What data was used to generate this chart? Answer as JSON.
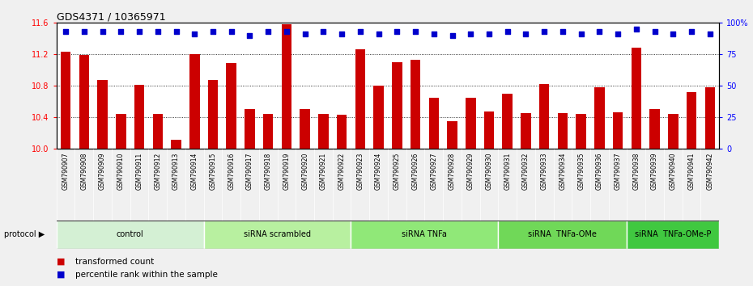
{
  "title": "GDS4371 / 10365971",
  "samples": [
    "GSM790907",
    "GSM790908",
    "GSM790909",
    "GSM790910",
    "GSM790911",
    "GSM790912",
    "GSM790913",
    "GSM790914",
    "GSM790915",
    "GSM790916",
    "GSM790917",
    "GSM790918",
    "GSM790919",
    "GSM790920",
    "GSM790921",
    "GSM790922",
    "GSM790923",
    "GSM790924",
    "GSM790925",
    "GSM790926",
    "GSM790927",
    "GSM790928",
    "GSM790929",
    "GSM790930",
    "GSM790931",
    "GSM790932",
    "GSM790933",
    "GSM790934",
    "GSM790935",
    "GSM790936",
    "GSM790937",
    "GSM790938",
    "GSM790939",
    "GSM790940",
    "GSM790941",
    "GSM790942"
  ],
  "bar_values": [
    11.23,
    11.19,
    10.87,
    10.44,
    10.81,
    10.44,
    10.11,
    11.2,
    10.87,
    11.09,
    10.5,
    10.44,
    11.58,
    10.5,
    10.44,
    10.43,
    11.26,
    10.8,
    11.1,
    11.13,
    10.65,
    10.35,
    10.65,
    10.47,
    10.7,
    10.45,
    10.82,
    10.45,
    10.44,
    10.78,
    10.46,
    11.28,
    10.5,
    10.44,
    10.72,
    10.78
  ],
  "percentile_values": [
    93,
    93,
    93,
    93,
    93,
    93,
    93,
    91,
    93,
    93,
    90,
    93,
    93,
    91,
    93,
    91,
    93,
    91,
    93,
    93,
    91,
    90,
    91,
    91,
    93,
    91,
    93,
    93,
    91,
    93,
    91,
    95,
    93,
    91,
    93,
    91
  ],
  "groups": [
    {
      "label": "control",
      "start": 0,
      "end": 7,
      "color": "#d4f0d4"
    },
    {
      "label": "siRNA scrambled",
      "start": 8,
      "end": 15,
      "color": "#b8f0a0"
    },
    {
      "label": "siRNA TNFa",
      "start": 16,
      "end": 23,
      "color": "#90e878"
    },
    {
      "label": "siRNA  TNFa-OMe",
      "start": 24,
      "end": 30,
      "color": "#70d858"
    },
    {
      "label": "siRNA  TNFa-OMe-P",
      "start": 31,
      "end": 35,
      "color": "#40c840"
    }
  ],
  "bar_color": "#cc0000",
  "dot_color": "#0000cc",
  "ylim_left": [
    10.0,
    11.6
  ],
  "ylim_right": [
    0,
    100
  ],
  "yticks_left": [
    10.0,
    10.4,
    10.8,
    11.2,
    11.6
  ],
  "yticks_right": [
    0,
    25,
    50,
    75,
    100
  ],
  "grid_vals": [
    10.4,
    10.8,
    11.2
  ],
  "legend_items": [
    {
      "label": "transformed count",
      "color": "#cc0000"
    },
    {
      "label": "percentile rank within the sample",
      "color": "#0000cc"
    }
  ]
}
